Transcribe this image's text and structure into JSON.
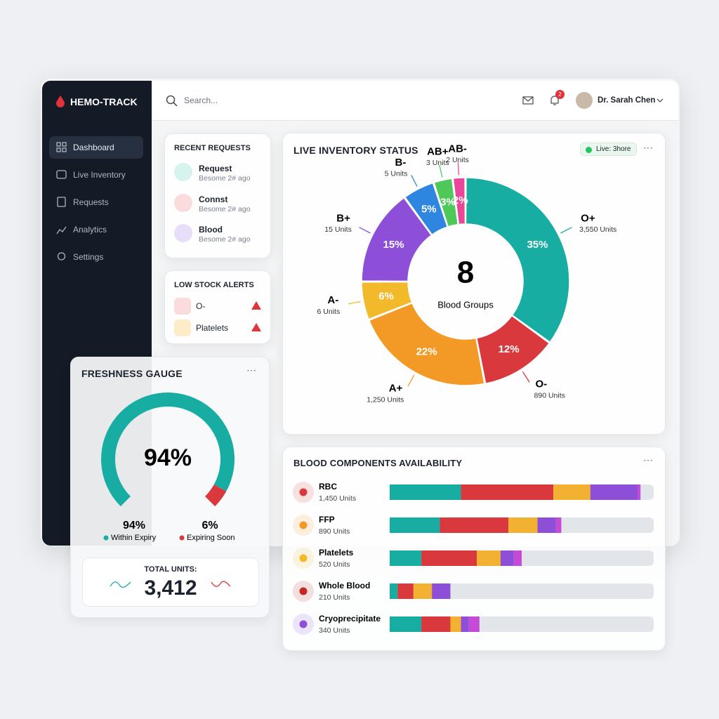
{
  "app": {
    "brand": "HEMO-TRACK",
    "search_placeholder": "Search...",
    "notification_count": "2",
    "user": "Dr. Sarah Chen"
  },
  "nav": [
    "Dashboard",
    "Live Inventory",
    "Requests",
    "Analytics",
    "Settings"
  ],
  "recent_requests": {
    "title": "RECENT REQUESTS",
    "items": [
      {
        "label": "Request",
        "sub": "Besome 2# ago"
      },
      {
        "label": "Connst",
        "sub": "Besome 2# ago"
      },
      {
        "label": "Blood",
        "sub": "Besome 2# ago"
      }
    ]
  },
  "low_stock": {
    "title": "LOW STOCK ALERTS",
    "items": [
      "O-",
      "Platelets"
    ]
  },
  "chart_data": [
    {
      "type": "pie",
      "title": "LIVE INVENTORY STATUS",
      "badge": "Live: 3hore",
      "center_value": "8",
      "center_label": "Blood Groups",
      "categories": [
        "O+",
        "O-",
        "A+",
        "A-",
        "B+",
        "B-",
        "AB+",
        "AB-"
      ],
      "values": [
        35,
        12,
        22,
        6,
        15,
        5,
        3,
        2
      ],
      "value_labels": [
        "35%",
        "12%",
        "22%",
        "6%",
        "15%",
        "5%",
        "3%",
        "2%"
      ],
      "unit_labels": [
        "3,550 Units",
        "890 Units",
        "1,250 Units",
        "6 Units",
        "15 Units",
        "5 Units",
        "3 Units",
        "2 Units"
      ],
      "colors": [
        "#17ada3",
        "#d9393c",
        "#f29a25",
        "#f2b92a",
        "#8e4fd8",
        "#2f86e0",
        "#4fc85a",
        "#e9489a"
      ]
    },
    {
      "type": "gauge",
      "title": "FRESHNESS GAUGE",
      "categories": [
        "Within Expiry",
        "Expiring Soon"
      ],
      "values": [
        94,
        6
      ],
      "value_labels": [
        "94%",
        "6%"
      ],
      "colors": [
        "#17ada3",
        "#d9393c"
      ],
      "total_label": "TOTAL UNITS:",
      "total": "3,412"
    },
    {
      "type": "bar",
      "title": "BLOOD COMPONENTS AVAILABILITY",
      "orientation": "horizontal",
      "stacked": true,
      "categories": [
        "RBC",
        "FFP",
        "Platelets",
        "Whole Blood",
        "Cryoprecipitate"
      ],
      "unit_labels": [
        "1,450 Units",
        "890 Units",
        "520 Units",
        "210 Units",
        "340 Units"
      ],
      "icon_colors": [
        "#d9393c",
        "#f29a25",
        "#f2b92a",
        "#c62828",
        "#8e4fd8"
      ],
      "xlim": [
        0,
        100
      ],
      "series": [
        {
          "color": "#17ada3",
          "values": [
            27,
            19,
            12,
            3,
            12
          ]
        },
        {
          "color": "#d9393c",
          "values": [
            35,
            26,
            21,
            6,
            11
          ]
        },
        {
          "color": "#f2b131",
          "values": [
            14,
            11,
            9,
            7,
            4
          ]
        },
        {
          "color": "#8e4fd8",
          "values": [
            18,
            7,
            5,
            7,
            3
          ]
        },
        {
          "color": "#c54bd6",
          "values": [
            1,
            2,
            3,
            0,
            4
          ]
        }
      ]
    }
  ]
}
